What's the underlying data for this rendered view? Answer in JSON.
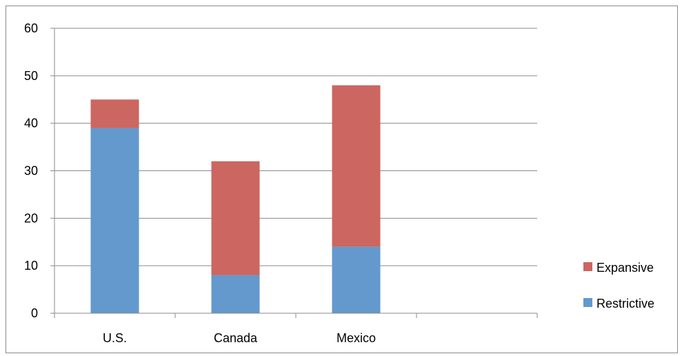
{
  "chart_data": {
    "type": "bar",
    "stacked": true,
    "categories": [
      "U.S.",
      "Canada",
      "Mexico",
      ""
    ],
    "series": [
      {
        "name": "Restrictive",
        "values": [
          39,
          8,
          14,
          null
        ],
        "color": "#6399cd"
      },
      {
        "name": "Expansive",
        "values": [
          6,
          24,
          34,
          null
        ],
        "color": "#cc6660"
      }
    ],
    "ylim": [
      0,
      60
    ],
    "yticks": [
      0,
      10,
      20,
      30,
      40,
      50,
      60
    ],
    "grid": true,
    "legend": "right",
    "legend_order": [
      "Expansive",
      "Restrictive"
    ]
  }
}
